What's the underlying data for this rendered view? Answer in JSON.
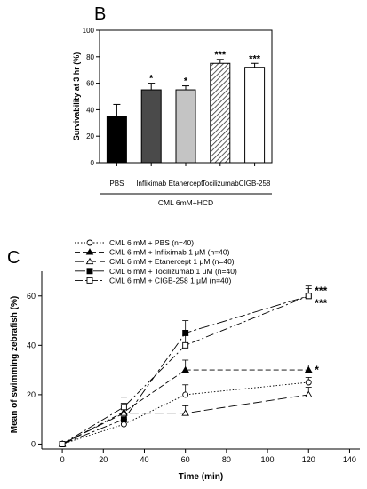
{
  "chart_data": [
    {
      "panel": "B",
      "type": "bar",
      "ylabel": "Survivability at 3 hr (%)",
      "ylim": [
        0,
        100
      ],
      "yticks": [
        0,
        20,
        40,
        60,
        80,
        100
      ],
      "categories": [
        "PBS",
        "Infliximab",
        "Etanercept",
        "Tocilizumab",
        "CIGB-258"
      ],
      "values": [
        35,
        55,
        55,
        75,
        72
      ],
      "errors": [
        9,
        5,
        3,
        3,
        3
      ],
      "significance": [
        "",
        "*",
        "*",
        "***",
        "***"
      ],
      "bar_colors": [
        "#000000",
        "#4a4a4a",
        "#c4c4c4",
        "hatch",
        "#ffffff"
      ],
      "group_label": "CML 6mM+HCD"
    },
    {
      "panel": "C",
      "type": "line",
      "xlabel": "Time (min)",
      "ylabel": "Mean of swimming zebrafish (%)",
      "xlim": [
        -10,
        145
      ],
      "ylim": [
        -2,
        70
      ],
      "xticks": [
        0,
        20,
        40,
        60,
        80,
        100,
        120,
        140
      ],
      "yticks": [
        0,
        20,
        40,
        60
      ],
      "legend_position": "top",
      "series": [
        {
          "name": "CML 6 mM + PBS (n=40)",
          "x": [
            0,
            30,
            60,
            120
          ],
          "y": [
            0,
            8,
            20,
            25
          ],
          "err": [
            0,
            2,
            4,
            2
          ],
          "marker": "circle-open",
          "dash": "1.5,2"
        },
        {
          "name": "CML 6 mM + Infliximab 1 μM (n=40)",
          "x": [
            0,
            30,
            60,
            120
          ],
          "y": [
            0,
            13,
            30,
            30
          ],
          "err": [
            0,
            3,
            4,
            2
          ],
          "marker": "triangle-filled",
          "dash": "6,3"
        },
        {
          "name": "CML 6 mM + Etanercept 1 μM (n=40)",
          "x": [
            0,
            30,
            60,
            120
          ],
          "y": [
            0,
            12.5,
            12.5,
            20
          ],
          "err": [
            0,
            4,
            3,
            3
          ],
          "marker": "triangle-open",
          "dash": "10,4"
        },
        {
          "name": "CML 6 mM + Tocilizumab 1 μM (n=40)",
          "x": [
            0,
            30,
            60,
            120
          ],
          "y": [
            0,
            10,
            45,
            60
          ],
          "err": [
            0,
            9,
            5,
            3
          ],
          "marker": "square-filled",
          "dash": "12,3,3,3"
        },
        {
          "name": "CML 6 mM + CIGB-258 1 μM (n=40)",
          "x": [
            0,
            30,
            60,
            120
          ],
          "y": [
            0,
            15,
            40,
            60
          ],
          "err": [
            0,
            4,
            4,
            4
          ],
          "marker": "square-open",
          "dash": "9,3,2,3"
        }
      ],
      "annotations": [
        {
          "text": "***",
          "x": 120,
          "y": 62
        },
        {
          "text": "***",
          "x": 120,
          "y": 57
        },
        {
          "text": "*",
          "x": 120,
          "y": 30
        }
      ]
    }
  ]
}
